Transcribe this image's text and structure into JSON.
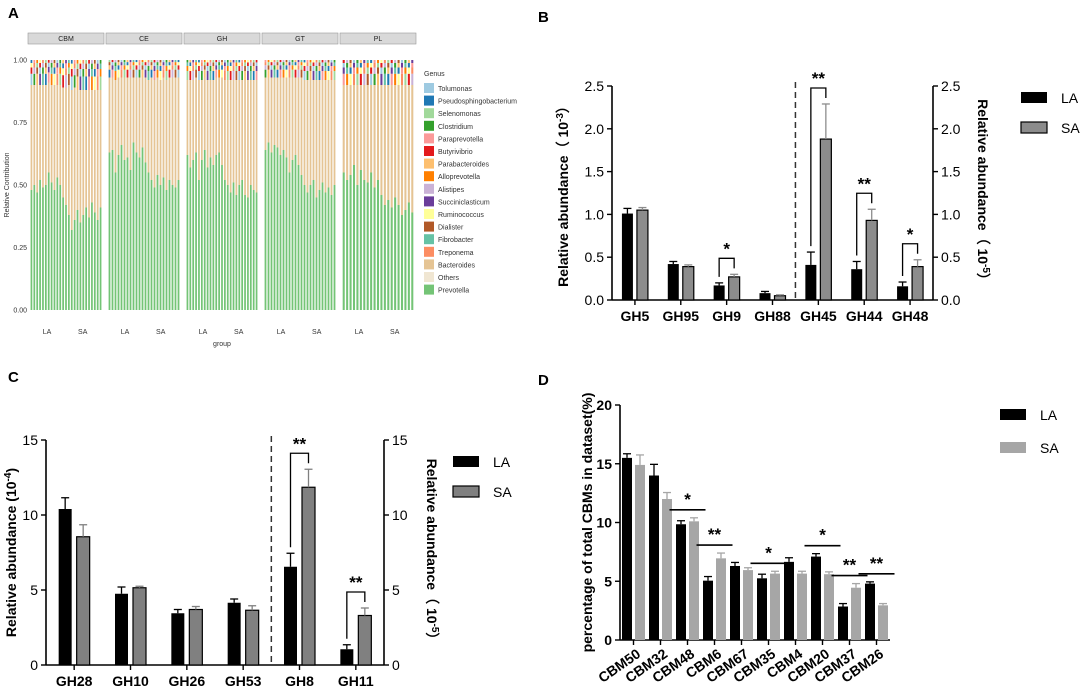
{
  "colors": {
    "la": "#000000",
    "sa_B": "#8c8c8c",
    "sa_C": "#808080",
    "sa_D": "#a6a6a6",
    "strip": "#d9d9d9"
  },
  "chart_data": [
    {
      "panel": "A",
      "type": "bar",
      "stacked": true,
      "xlabel": "group",
      "ylabel": "Relative Contribution",
      "ylim": [
        0,
        1
      ],
      "yticks": [
        "0.00",
        "0.25",
        "0.50",
        "0.75",
        "1.00"
      ],
      "facets": [
        "CBM",
        "CE",
        "GH",
        "GT",
        "PL"
      ],
      "group_labels": [
        "LA",
        "SA"
      ],
      "legend_title": "Genus",
      "legend": [
        {
          "name": "Tolumonas",
          "color": "#9ecae1"
        },
        {
          "name": "Pseudosphingobacterium",
          "color": "#1f78b4"
        },
        {
          "name": "Selenomonas",
          "color": "#a1d99b"
        },
        {
          "name": "Clostridium",
          "color": "#33a02c"
        },
        {
          "name": "Paraprevotella",
          "color": "#fb9a99"
        },
        {
          "name": "Butyrivibrio",
          "color": "#e31a1c"
        },
        {
          "name": "Parabacteroides",
          "color": "#fdbf6f"
        },
        {
          "name": "Alloprevotella",
          "color": "#ff7f00"
        },
        {
          "name": "Alistipes",
          "color": "#cab2d6"
        },
        {
          "name": "Succiniclasticum",
          "color": "#6a3d9a"
        },
        {
          "name": "Ruminococcus",
          "color": "#ffff99"
        },
        {
          "name": "Dialister",
          "color": "#b15928"
        },
        {
          "name": "Fibrobacter",
          "color": "#66c2a5"
        },
        {
          "name": "Treponema",
          "color": "#fc8d62"
        },
        {
          "name": "Bacteroides",
          "color": "#e5c494"
        },
        {
          "name": "Others",
          "color": "#f0e6d2"
        },
        {
          "name": "Prevotella",
          "color": "#74c476"
        }
      ],
      "prevotella_fraction": [
        [
          0.48,
          0.5,
          0.47,
          0.52,
          0.49,
          0.5,
          0.55,
          0.51,
          0.48,
          0.53,
          0.5,
          0.45,
          0.42,
          0.38,
          0.32,
          0.36,
          0.4,
          0.35,
          0.38,
          0.41,
          0.37,
          0.43,
          0.39,
          0.36,
          0.41
        ],
        [
          0.63,
          0.64,
          0.55,
          0.62,
          0.66,
          0.6,
          0.61,
          0.56,
          0.67,
          0.63,
          0.61,
          0.65,
          0.59,
          0.55,
          0.52,
          0.49,
          0.54,
          0.5,
          0.53,
          0.48,
          0.52,
          0.5,
          0.49,
          0.52
        ],
        [
          0.62,
          0.57,
          0.6,
          0.63,
          0.52,
          0.6,
          0.64,
          0.57,
          0.61,
          0.58,
          0.62,
          0.63,
          0.58,
          0.52,
          0.5,
          0.47,
          0.51,
          0.46,
          0.5,
          0.52,
          0.46,
          0.45,
          0.5,
          0.48,
          0.47
        ],
        [
          0.64,
          0.67,
          0.63,
          0.66,
          0.65,
          0.62,
          0.64,
          0.61,
          0.55,
          0.6,
          0.62,
          0.58,
          0.54,
          0.5,
          0.47,
          0.5,
          0.52,
          0.45,
          0.48,
          0.51,
          0.47,
          0.49,
          0.46,
          0.5
        ],
        [
          0.55,
          0.52,
          0.54,
          0.58,
          0.5,
          0.56,
          0.52,
          0.51,
          0.55,
          0.49,
          0.52,
          0.46,
          0.42,
          0.44,
          0.41,
          0.45,
          0.42,
          0.38,
          0.4,
          0.43,
          0.39
        ]
      ],
      "bacteroides_fraction": [
        [
          0.42,
          0.4,
          0.43,
          0.38,
          0.41,
          0.4,
          0.36,
          0.39,
          0.42,
          0.37,
          0.4,
          0.44,
          0.47,
          0.52,
          0.56,
          0.53,
          0.48,
          0.53,
          0.5,
          0.47,
          0.51,
          0.45,
          0.49,
          0.52,
          0.47
        ],
        [
          0.3,
          0.29,
          0.37,
          0.31,
          0.27,
          0.33,
          0.32,
          0.37,
          0.26,
          0.3,
          0.32,
          0.28,
          0.34,
          0.37,
          0.41,
          0.43,
          0.39,
          0.42,
          0.4,
          0.44,
          0.41,
          0.43,
          0.44,
          0.41
        ],
        [
          0.3,
          0.35,
          0.32,
          0.3,
          0.4,
          0.32,
          0.29,
          0.35,
          0.31,
          0.34,
          0.31,
          0.3,
          0.35,
          0.4,
          0.42,
          0.45,
          0.41,
          0.46,
          0.42,
          0.4,
          0.46,
          0.47,
          0.42,
          0.44,
          0.45
        ],
        [
          0.29,
          0.26,
          0.3,
          0.27,
          0.28,
          0.31,
          0.29,
          0.32,
          0.38,
          0.33,
          0.31,
          0.35,
          0.39,
          0.42,
          0.45,
          0.42,
          0.4,
          0.47,
          0.44,
          0.41,
          0.45,
          0.43,
          0.46,
          0.42
        ],
        [
          0.35,
          0.38,
          0.36,
          0.32,
          0.4,
          0.34,
          0.38,
          0.39,
          0.35,
          0.41,
          0.38,
          0.44,
          0.48,
          0.46,
          0.49,
          0.45,
          0.48,
          0.52,
          0.5,
          0.47,
          0.51
        ]
      ]
    },
    {
      "panel": "B",
      "type": "bar",
      "categories": [
        "GH5",
        "GH95",
        "GH9",
        "GH88",
        "GH45",
        "GH44",
        "GH48"
      ],
      "ylabel": "Relative abundance（ 10",
      "ylabel_exp": "-3",
      "ylabel_close": "）",
      "y2label": "Relative abundance（ 10",
      "y2label_exp": "-5",
      "y2label_close": "）",
      "ylim": [
        0,
        2.5
      ],
      "yticks": [
        "0.0",
        "0.5",
        "1.0",
        "1.5",
        "2.0",
        "2.5"
      ],
      "series": [
        {
          "name": "LA",
          "values": [
            1.01,
            0.42,
            0.17,
            0.08,
            0.41,
            0.36,
            0.16
          ],
          "errors": [
            0.06,
            0.03,
            0.03,
            0.02,
            0.15,
            0.09,
            0.05
          ]
        },
        {
          "name": "SA",
          "values": [
            1.05,
            0.39,
            0.27,
            0.05,
            1.88,
            0.93,
            0.39
          ],
          "errors": [
            0.03,
            0.02,
            0.03,
            0.01,
            0.41,
            0.13,
            0.08
          ]
        }
      ],
      "significance": [
        {
          "category": "GH9",
          "label": "*"
        },
        {
          "category": "GH45",
          "label": "**"
        },
        {
          "category": "GH44",
          "label": "**"
        },
        {
          "category": "GH48",
          "label": "*"
        }
      ],
      "legend": [
        "LA",
        "SA"
      ]
    },
    {
      "panel": "C",
      "type": "bar",
      "categories": [
        "GH28",
        "GH10",
        "GH26",
        "GH53",
        "GH8",
        "GH11"
      ],
      "ylabel": "Relative abundance (10",
      "ylabel_exp": "-4",
      "ylabel_close": ")",
      "y2label": "Relative abundance（ 10",
      "y2label_exp": "-5",
      "y2label_close": "）",
      "ylim": [
        0,
        15
      ],
      "yticks": [
        "0",
        "5",
        "10",
        "15"
      ],
      "series": [
        {
          "name": "LA",
          "values": [
            10.4,
            4.75,
            3.45,
            4.15,
            6.55,
            1.05
          ],
          "errors": [
            0.75,
            0.45,
            0.25,
            0.25,
            0.9,
            0.3
          ]
        },
        {
          "name": "SA",
          "values": [
            8.55,
            5.15,
            3.7,
            3.65,
            11.85,
            3.3
          ],
          "errors": [
            0.8,
            0.1,
            0.2,
            0.3,
            1.2,
            0.5
          ]
        }
      ],
      "significance": [
        {
          "category": "GH8",
          "label": "**"
        },
        {
          "category": "GH11",
          "label": "**"
        }
      ],
      "legend": [
        "LA",
        "SA"
      ]
    },
    {
      "panel": "D",
      "type": "bar",
      "categories": [
        "CBM50",
        "CBM32",
        "CBM48",
        "CBM6",
        "CBM67",
        "CBM35",
        "CBM4",
        "CBM20",
        "CBM37",
        "CBM26"
      ],
      "ylabel": "percentage of total CBMs  in dataset(%)",
      "ylim": [
        0,
        20
      ],
      "yticks": [
        "0",
        "5",
        "10",
        "15",
        "20"
      ],
      "series": [
        {
          "name": "LA",
          "values": [
            15.5,
            14.0,
            9.85,
            5.05,
            6.3,
            5.25,
            6.65,
            7.1,
            2.85,
            4.8
          ],
          "errors": [
            0.35,
            0.95,
            0.3,
            0.35,
            0.3,
            0.35,
            0.35,
            0.25,
            0.25,
            0.15
          ]
        },
        {
          "name": "SA",
          "values": [
            14.9,
            12.0,
            10.1,
            6.95,
            5.95,
            5.65,
            5.65,
            5.6,
            4.45,
            2.95
          ],
          "errors": [
            0.85,
            0.55,
            0.3,
            0.45,
            0.2,
            0.2,
            0.2,
            0.2,
            0.35,
            0.15
          ]
        }
      ],
      "significance": [
        {
          "category": "CBM48",
          "label": "*"
        },
        {
          "category": "CBM6",
          "label": "**"
        },
        {
          "category": "CBM35",
          "label": "*"
        },
        {
          "category": "CBM20",
          "label": "*"
        },
        {
          "category": "CBM37",
          "label": "**"
        },
        {
          "category": "CBM26",
          "label": "**"
        }
      ],
      "legend": [
        "LA",
        "SA"
      ]
    }
  ]
}
